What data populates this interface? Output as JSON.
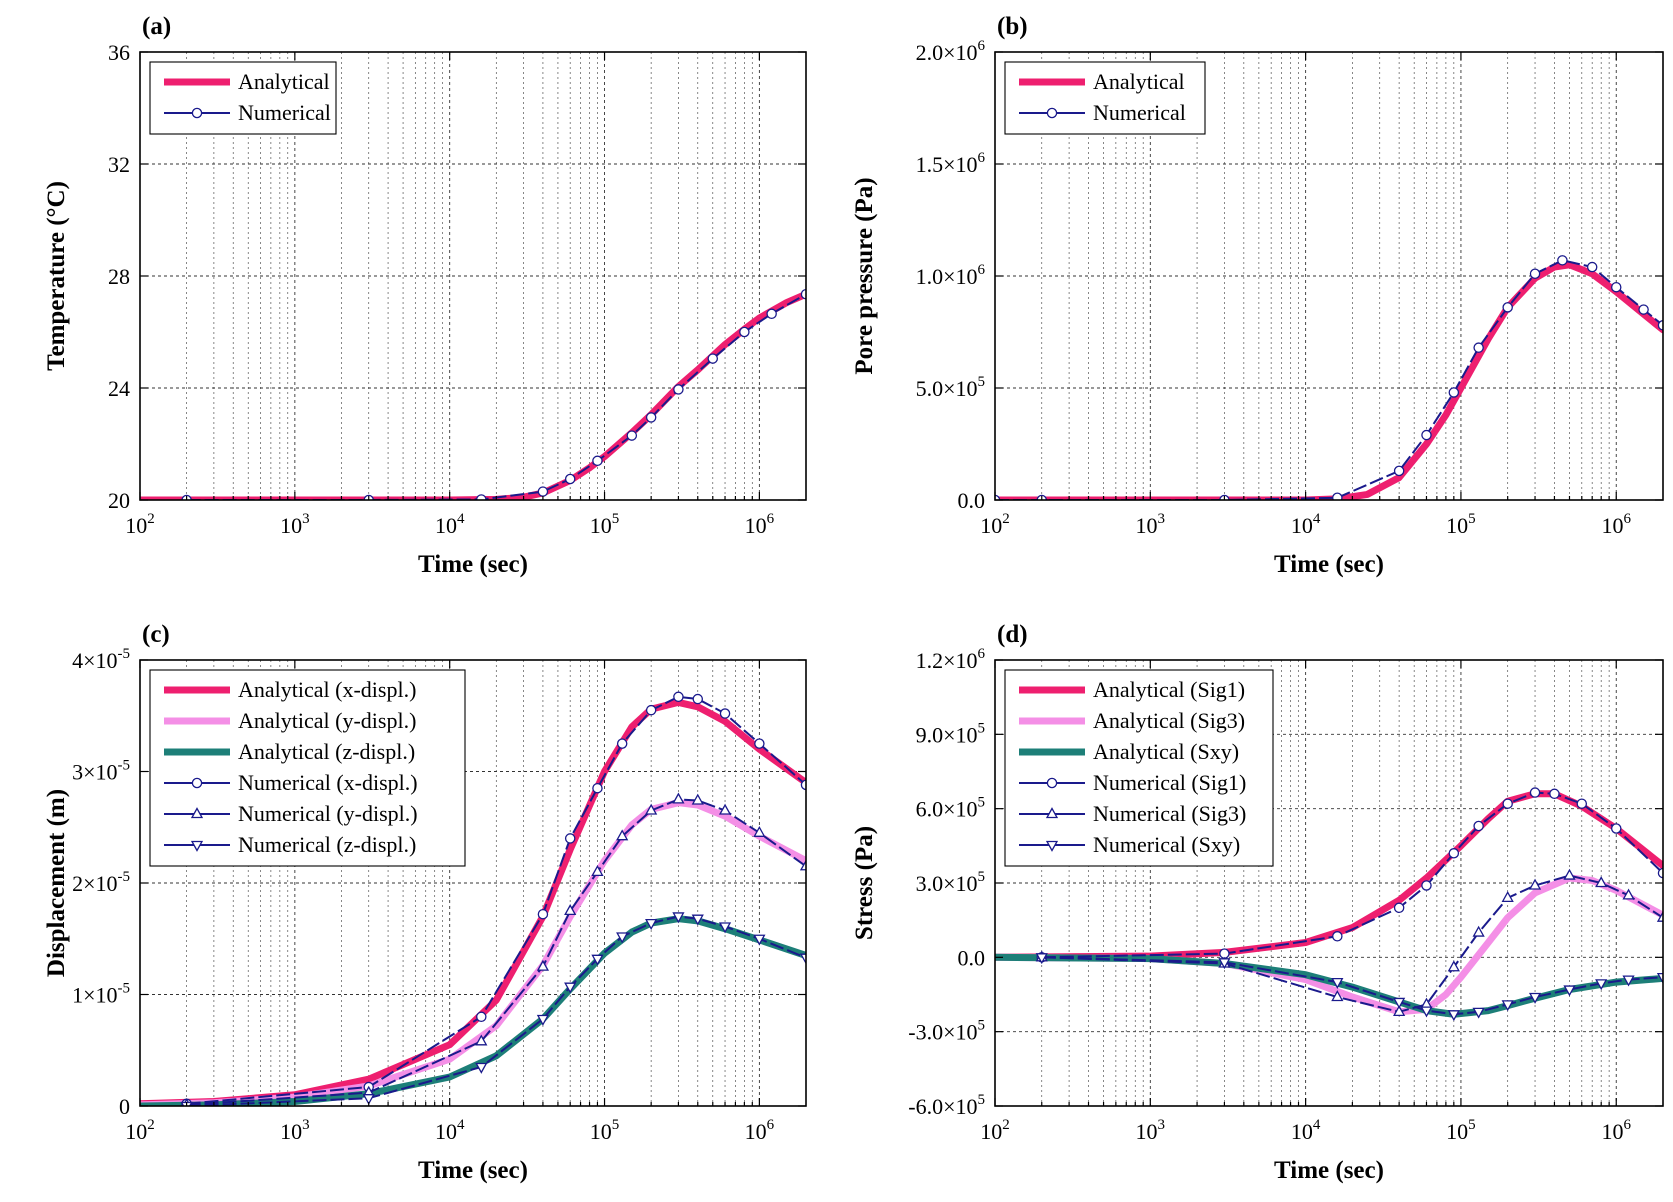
{
  "figure": {
    "description": "Four-panel comparison of analytical and numerical solutions"
  },
  "chart_data": [
    {
      "id": "a",
      "type": "line",
      "panel_label": "(a)",
      "xlabel": "Time (sec)",
      "ylabel": "Temperature (°C)",
      "xscale": "log",
      "xlim": [
        100,
        2000000
      ],
      "ylim": [
        20,
        36
      ],
      "xticks": [
        100,
        1000,
        10000,
        100000,
        1000000
      ],
      "xtick_labels": [
        "10|2",
        "10|3",
        "10|4",
        "10|5",
        "10|6"
      ],
      "yticks": [
        20,
        24,
        28,
        32,
        36
      ],
      "ytick_labels": [
        "20",
        "24",
        "28",
        "32",
        "36"
      ],
      "grid": true,
      "legend": [
        "Analytical",
        "Numerical"
      ],
      "series": [
        {
          "name": "Analytical",
          "style": "thick",
          "color": "#ee1f6f",
          "x": [
            100,
            1000,
            10000,
            20000,
            30000,
            40000,
            60000,
            80000,
            100000,
            150000,
            200000,
            300000,
            400000,
            600000,
            800000,
            1000000,
            1500000,
            2000000
          ],
          "y": [
            20,
            20,
            20,
            20.02,
            20.1,
            20.25,
            20.7,
            21.15,
            21.55,
            22.4,
            23.05,
            24.05,
            24.65,
            25.55,
            26.1,
            26.5,
            27.05,
            27.35
          ]
        },
        {
          "name": "Numerical",
          "style": "line-marker",
          "marker": "circle",
          "color": "#1a1a8c",
          "x": [
            200,
            3000,
            16000,
            40000,
            60000,
            90000,
            150000,
            200000,
            300000,
            500000,
            800000,
            1200000,
            2000000
          ],
          "y": [
            20,
            20,
            20.02,
            20.3,
            20.75,
            21.4,
            22.3,
            22.95,
            23.95,
            25.05,
            26.0,
            26.65,
            27.35
          ]
        }
      ]
    },
    {
      "id": "b",
      "type": "line",
      "panel_label": "(b)",
      "xlabel": "Time (sec)",
      "ylabel": "Pore pressure (Pa)",
      "xscale": "log",
      "xlim": [
        100,
        2000000
      ],
      "ylim": [
        0,
        2000000
      ],
      "xticks": [
        100,
        1000,
        10000,
        100000,
        1000000
      ],
      "xtick_labels": [
        "10|2",
        "10|3",
        "10|4",
        "10|5",
        "10|6"
      ],
      "yticks": [
        0,
        500000,
        1000000,
        1500000,
        2000000
      ],
      "ytick_labels": [
        "0.0",
        "5.0×10|5",
        "1.0×10|6",
        "1.5×10|6",
        "2.0×10|6"
      ],
      "grid": true,
      "legend": [
        "Analytical",
        "Numerical"
      ],
      "series": [
        {
          "name": "Analytical",
          "style": "thick",
          "color": "#ee1f6f",
          "x": [
            100,
            1000,
            10000,
            16000,
            25000,
            40000,
            60000,
            80000,
            100000,
            150000,
            200000,
            300000,
            400000,
            500000,
            700000,
            1000000,
            1500000,
            2000000
          ],
          "y": [
            0,
            0,
            0,
            5000,
            25000,
            100000,
            250000,
            380000,
            500000,
            720000,
            860000,
            990000,
            1040000,
            1050000,
            1010000,
            930000,
            830000,
            760000
          ]
        },
        {
          "name": "Numerical",
          "style": "line-marker",
          "marker": "circle",
          "color": "#1a1a8c",
          "x": [
            100,
            200,
            3000,
            16000,
            40000,
            60000,
            90000,
            130000,
            200000,
            300000,
            450000,
            700000,
            1000000,
            1500000,
            2000000
          ],
          "y": [
            0,
            0,
            0,
            10000,
            130000,
            290000,
            480000,
            680000,
            860000,
            1010000,
            1070000,
            1040000,
            950000,
            850000,
            780000
          ]
        }
      ]
    },
    {
      "id": "c",
      "type": "line",
      "panel_label": "(c)",
      "xlabel": "Time (sec)",
      "ylabel": "Displacement (m)",
      "xscale": "log",
      "xlim": [
        100,
        2000000
      ],
      "ylim": [
        0,
        4e-05
      ],
      "xticks": [
        100,
        1000,
        10000,
        100000,
        1000000
      ],
      "xtick_labels": [
        "10|2",
        "10|3",
        "10|4",
        "10|5",
        "10|6"
      ],
      "yticks": [
        0,
        1e-05,
        2e-05,
        3e-05,
        4e-05
      ],
      "ytick_labels": [
        "0",
        "1×10|-5",
        "2×10|-5",
        "3×10|-5",
        "4×10|-5"
      ],
      "grid": true,
      "legend": [
        "Analytical (x-displ.)",
        "Analytical (y-displ.)",
        "Analytical (z-displ.)",
        "Numerical (x-displ.)",
        "Numerical (y-displ.)",
        "Numerical (z-displ.)"
      ],
      "series": [
        {
          "name": "Analytical (x-displ.)",
          "style": "thick",
          "color": "#ee1f6f",
          "x": [
            100,
            300,
            1000,
            3000,
            10000,
            20000,
            40000,
            60000,
            100000,
            150000,
            200000,
            300000,
            400000,
            600000,
            1000000,
            2000000
          ],
          "y": [
            2e-07,
            4e-07,
            1e-06,
            2.4e-06,
            5.5e-06,
            9.5e-06,
            1.7e-05,
            2.3e-05,
            3e-05,
            3.4e-05,
            3.56e-05,
            3.62e-05,
            3.58e-05,
            3.45e-05,
            3.2e-05,
            2.9e-05
          ]
        },
        {
          "name": "Analytical (y-displ.)",
          "style": "thick",
          "color": "#f48fe6",
          "x": [
            100,
            300,
            1000,
            3000,
            10000,
            20000,
            40000,
            60000,
            100000,
            150000,
            200000,
            300000,
            400000,
            600000,
            1000000,
            2000000
          ],
          "y": [
            1e-07,
            3e-07,
            8e-07,
            1.8e-06,
            4.2e-06,
            7.2e-06,
            1.26e-05,
            1.7e-05,
            2.2e-05,
            2.52e-05,
            2.66e-05,
            2.72e-05,
            2.7e-05,
            2.6e-05,
            2.42e-05,
            2.2e-05
          ]
        },
        {
          "name": "Analytical (z-displ.)",
          "style": "thick",
          "color": "#1d7f78",
          "x": [
            100,
            300,
            1000,
            3000,
            10000,
            20000,
            40000,
            60000,
            100000,
            150000,
            200000,
            300000,
            400000,
            600000,
            1000000,
            2000000
          ],
          "y": [
            0,
            1e-07,
            4e-07,
            1.1e-06,
            2.6e-06,
            4.5e-06,
            7.8e-06,
            1.05e-05,
            1.37e-05,
            1.56e-05,
            1.64e-05,
            1.68e-05,
            1.66e-05,
            1.59e-05,
            1.49e-05,
            1.35e-05
          ]
        },
        {
          "name": "Numerical (x-displ.)",
          "style": "line-marker",
          "marker": "circle",
          "color": "#1a1a8c",
          "x": [
            200,
            3000,
            16000,
            40000,
            60000,
            90000,
            130000,
            200000,
            300000,
            400000,
            600000,
            1000000,
            2000000
          ],
          "y": [
            2e-07,
            1.7e-06,
            8e-06,
            1.72e-05,
            2.4e-05,
            2.85e-05,
            3.25e-05,
            3.55e-05,
            3.67e-05,
            3.65e-05,
            3.52e-05,
            3.25e-05,
            2.88e-05
          ]
        },
        {
          "name": "Numerical (y-displ.)",
          "style": "line-marker",
          "marker": "triangle-up",
          "color": "#1a1a8c",
          "x": [
            200,
            3000,
            16000,
            40000,
            60000,
            90000,
            130000,
            200000,
            300000,
            400000,
            600000,
            1000000,
            2000000
          ],
          "y": [
            1e-07,
            1.2e-06,
            5.8e-06,
            1.25e-05,
            1.75e-05,
            2.1e-05,
            2.42e-05,
            2.65e-05,
            2.75e-05,
            2.74e-05,
            2.65e-05,
            2.45e-05,
            2.15e-05
          ]
        },
        {
          "name": "Numerical (z-displ.)",
          "style": "line-marker",
          "marker": "triangle-down",
          "color": "#1a1a8c",
          "x": [
            200,
            3000,
            16000,
            40000,
            60000,
            90000,
            130000,
            200000,
            300000,
            400000,
            600000,
            1000000,
            2000000
          ],
          "y": [
            0,
            7e-07,
            3.5e-06,
            7.8e-06,
            1.07e-05,
            1.32e-05,
            1.52e-05,
            1.64e-05,
            1.7e-05,
            1.68e-05,
            1.61e-05,
            1.5e-05,
            1.33e-05
          ]
        }
      ]
    },
    {
      "id": "d",
      "type": "line",
      "panel_label": "(d)",
      "xlabel": "Time (sec)",
      "ylabel": "Stress (Pa)",
      "xscale": "log",
      "xlim": [
        100,
        2000000
      ],
      "ylim": [
        -600000,
        1200000
      ],
      "xticks": [
        100,
        1000,
        10000,
        100000,
        1000000
      ],
      "xtick_labels": [
        "10|2",
        "10|3",
        "10|4",
        "10|5",
        "10|6"
      ],
      "yticks": [
        -600000,
        -300000,
        0,
        300000,
        600000,
        900000,
        1200000
      ],
      "ytick_labels": [
        "-6.0×10|5",
        "-3.0×10|5",
        "0.0",
        "3.0×10|5",
        "6.0×10|5",
        "9.0×10|5",
        "1.2×10|6"
      ],
      "grid": true,
      "legend": [
        "Analytical (Sig1)",
        "Analytical (Sig3)",
        "Analytical (Sxy)",
        "Numerical (Sig1)",
        "Numerical (Sig3)",
        "Numerical (Sxy)"
      ],
      "series": [
        {
          "name": "Analytical (Sig1)",
          "style": "thick",
          "color": "#ee1f6f",
          "x": [
            100,
            1000,
            3000,
            10000,
            20000,
            40000,
            60000,
            100000,
            150000,
            200000,
            300000,
            400000,
            600000,
            1000000,
            2000000
          ],
          "y": [
            0,
            5000,
            20000,
            60000,
            120000,
            230000,
            320000,
            450000,
            560000,
            630000,
            660000,
            660000,
            610000,
            520000,
            370000
          ]
        },
        {
          "name": "Analytical (Sig3)",
          "style": "thick",
          "color": "#f48fe6",
          "x": [
            100,
            1000,
            3000,
            10000,
            20000,
            40000,
            60000,
            80000,
            100000,
            150000,
            200000,
            300000,
            500000,
            700000,
            1000000,
            2000000
          ],
          "y": [
            0,
            -5000,
            -25000,
            -90000,
            -160000,
            -220000,
            -210000,
            -150000,
            -80000,
            60000,
            160000,
            260000,
            320000,
            310000,
            270000,
            170000
          ]
        },
        {
          "name": "Analytical (Sxy)",
          "style": "thick",
          "color": "#1d7f78",
          "x": [
            100,
            1000,
            3000,
            10000,
            20000,
            40000,
            60000,
            90000,
            150000,
            200000,
            300000,
            500000,
            1000000,
            2000000
          ],
          "y": [
            0,
            -5000,
            -25000,
            -70000,
            -120000,
            -180000,
            -215000,
            -230000,
            -215000,
            -195000,
            -165000,
            -130000,
            -100000,
            -85000
          ]
        },
        {
          "name": "Numerical (Sig1)",
          "style": "line-marker",
          "marker": "circle",
          "color": "#1a1a8c",
          "x": [
            200,
            3000,
            16000,
            40000,
            60000,
            90000,
            130000,
            200000,
            300000,
            400000,
            600000,
            1000000,
            2000000
          ],
          "y": [
            0,
            15000,
            85000,
            200000,
            290000,
            420000,
            530000,
            620000,
            665000,
            660000,
            620000,
            520000,
            340000
          ]
        },
        {
          "name": "Numerical (Sig3)",
          "style": "line-marker",
          "marker": "triangle-up",
          "color": "#1a1a8c",
          "x": [
            200,
            3000,
            16000,
            40000,
            60000,
            90000,
            130000,
            200000,
            300000,
            500000,
            800000,
            1200000,
            2000000
          ],
          "y": [
            0,
            -25000,
            -160000,
            -220000,
            -190000,
            -40000,
            100000,
            240000,
            290000,
            330000,
            300000,
            250000,
            160000
          ]
        },
        {
          "name": "Numerical (Sxy)",
          "style": "line-marker",
          "marker": "triangle-down",
          "color": "#1a1a8c",
          "x": [
            200,
            3000,
            16000,
            40000,
            60000,
            90000,
            130000,
            200000,
            300000,
            500000,
            800000,
            1200000,
            2000000
          ],
          "y": [
            0,
            -20000,
            -100000,
            -180000,
            -215000,
            -230000,
            -220000,
            -190000,
            -160000,
            -130000,
            -105000,
            -90000,
            -80000
          ]
        }
      ]
    }
  ]
}
